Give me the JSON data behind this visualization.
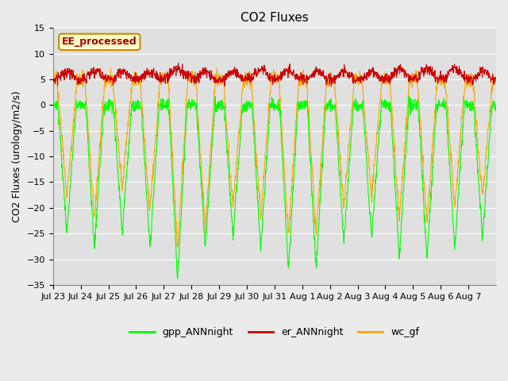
{
  "title": "CO2 Fluxes",
  "ylabel": "CO2 Fluxes (urology/m2/s)",
  "ylim": [
    -35,
    15
  ],
  "yticks": [
    -35,
    -30,
    -25,
    -20,
    -15,
    -10,
    -5,
    0,
    5,
    10,
    15
  ],
  "background_color": "#ebebeb",
  "plot_bg_color": "#e0e0e0",
  "title_fontsize": 11,
  "axis_fontsize": 9,
  "tick_fontsize": 8,
  "legend_entries": [
    "gpp_ANNnight",
    "er_ANNnight",
    "wc_gf"
  ],
  "legend_colors": [
    "#00ff00",
    "#cc0000",
    "#ffa500"
  ],
  "annotation_text": "EE_processed",
  "annotation_color": "#aa0000",
  "annotation_bg": "#ffffcc",
  "annotation_border": "#cc8800",
  "n_days": 16,
  "points_per_day": 96,
  "xtick_labels": [
    "Jul 23",
    "Jul 24",
    "Jul 25",
    "Jul 26",
    "Jul 27",
    "Jul 28",
    "Jul 29",
    "Jul 30",
    "Jul 31",
    "Aug 1",
    "Aug 2",
    "Aug 3",
    "Aug 4",
    "Aug 5",
    "Aug 6",
    "Aug 7"
  ],
  "gpp_color": "#00ff00",
  "er_color": "#cc0000",
  "wc_color": "#ffa500",
  "line_width": 0.8,
  "gpp_depths": [
    -25,
    -28,
    -25,
    -28,
    -34,
    -28,
    -26,
    -28,
    -32,
    -32,
    -27,
    -26,
    -30,
    -30,
    -28,
    -26
  ],
  "wc_depths": [
    -18,
    -22,
    -16,
    -21,
    -28,
    -24,
    -20,
    -22,
    -25,
    -25,
    -20,
    -18,
    -22,
    -23,
    -20,
    -18
  ],
  "er_means": [
    6.5,
    6.8,
    6.5,
    6.5,
    7.0,
    6.5,
    6.5,
    7.0,
    6.8,
    6.5,
    6.5,
    6.5,
    7.0,
    7.0,
    7.0,
    6.5
  ],
  "night_er": [
    5.0,
    5.2,
    5.0,
    5.0,
    5.5,
    5.0,
    5.0,
    5.2,
    5.2,
    5.0,
    5.0,
    5.0,
    5.2,
    5.2,
    5.2,
    5.0
  ],
  "wc_night": [
    5.0,
    5.0,
    5.0,
    5.0,
    5.5,
    5.0,
    5.0,
    5.0,
    5.0,
    5.0,
    5.0,
    5.0,
    5.0,
    5.0,
    5.0,
    5.0
  ]
}
